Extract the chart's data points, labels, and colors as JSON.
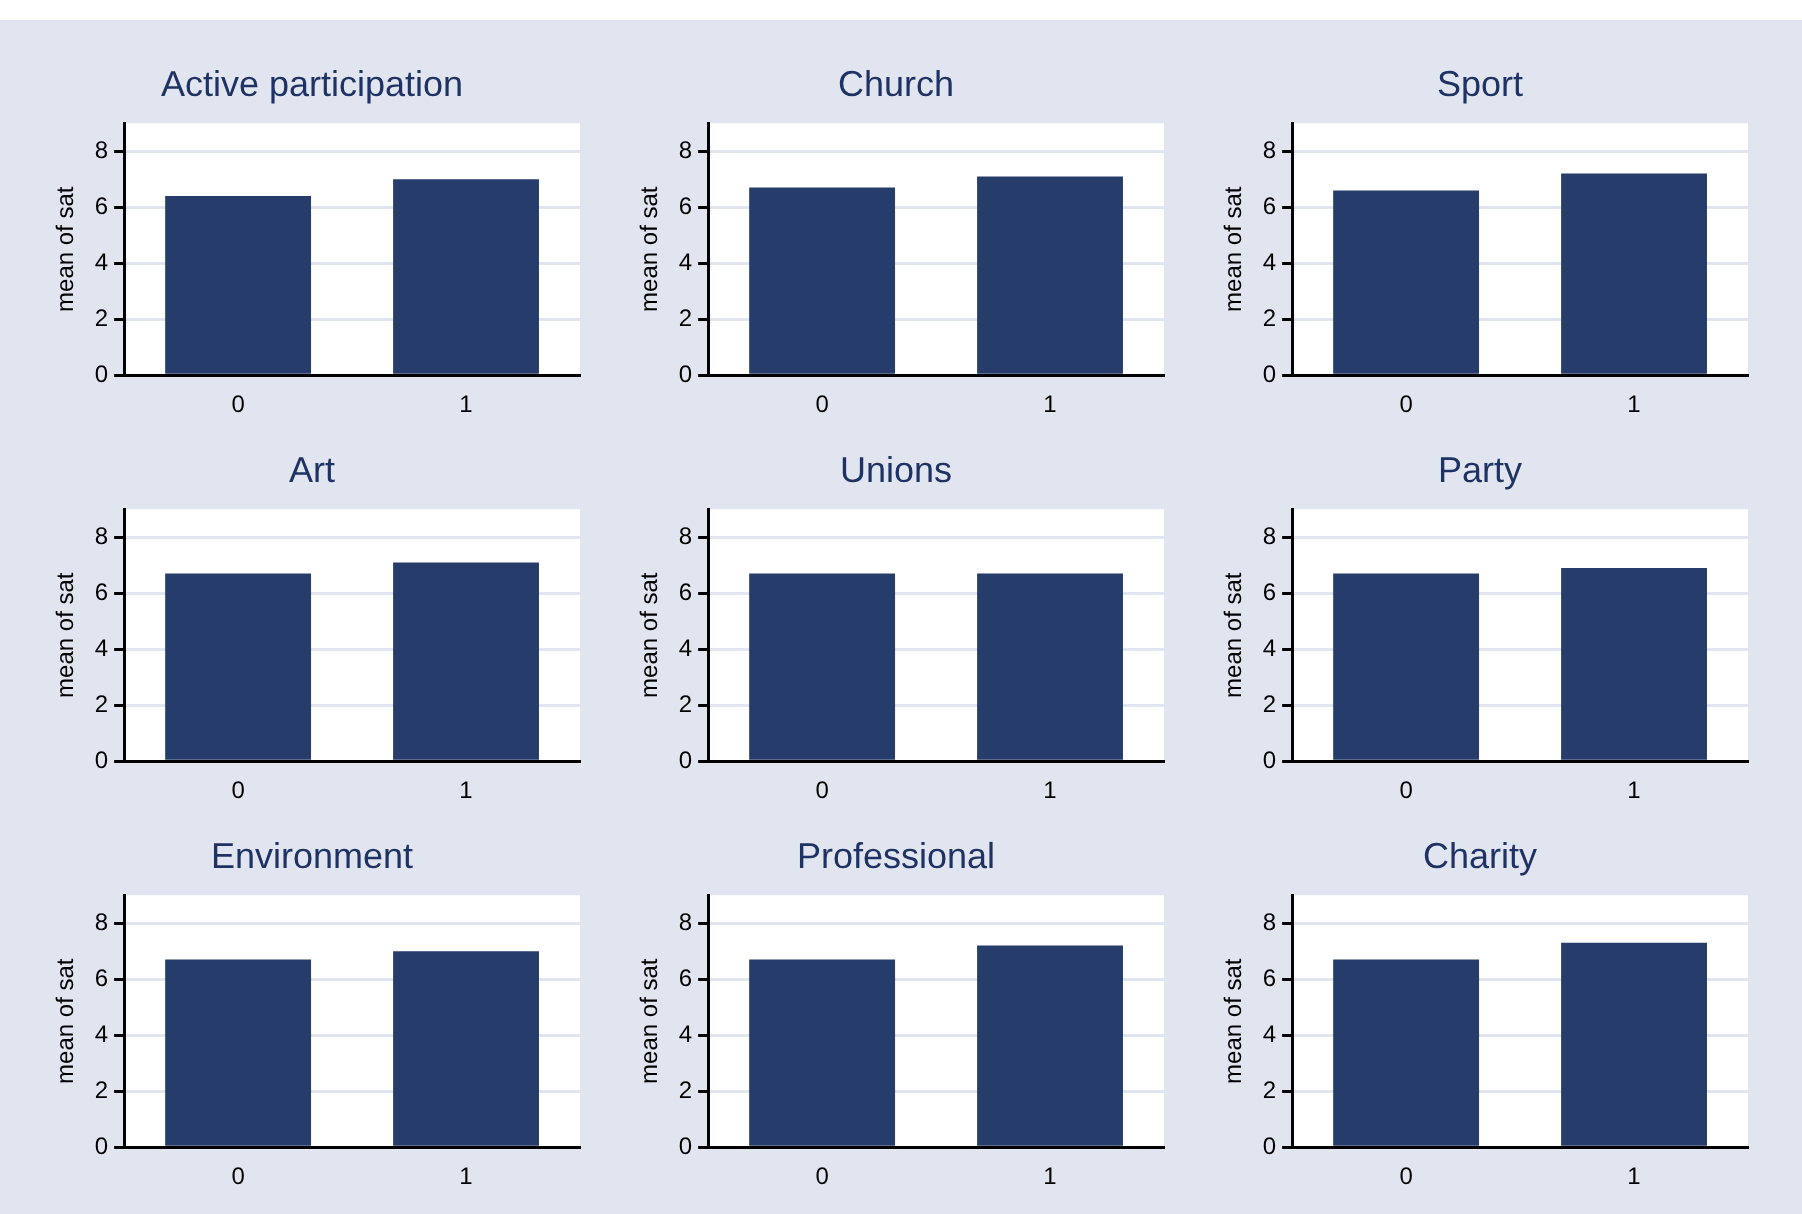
{
  "chart_data": [
    {
      "type": "bar",
      "title": "Active participation",
      "ylabel": "mean of sat",
      "categories": [
        "0",
        "1"
      ],
      "values": [
        6.4,
        7.0
      ],
      "color": "#263d6b",
      "ylim": [
        0,
        9
      ],
      "yticks": [
        0,
        2,
        4,
        6,
        8
      ],
      "grid": "y"
    },
    {
      "type": "bar",
      "title": "Church",
      "ylabel": "mean of sat",
      "categories": [
        "0",
        "1"
      ],
      "values": [
        6.7,
        7.1
      ],
      "color": "#263d6b",
      "ylim": [
        0,
        9
      ],
      "yticks": [
        0,
        2,
        4,
        6,
        8
      ],
      "grid": "y"
    },
    {
      "type": "bar",
      "title": "Sport",
      "ylabel": "mean of sat",
      "categories": [
        "0",
        "1"
      ],
      "values": [
        6.6,
        7.2
      ],
      "color": "#263d6b",
      "ylim": [
        0,
        9
      ],
      "yticks": [
        0,
        2,
        4,
        6,
        8
      ],
      "grid": "y"
    },
    {
      "type": "bar",
      "title": "Art",
      "ylabel": "mean of sat",
      "categories": [
        "0",
        "1"
      ],
      "values": [
        6.7,
        7.1
      ],
      "color": "#263d6b",
      "ylim": [
        0,
        9
      ],
      "yticks": [
        0,
        2,
        4,
        6,
        8
      ],
      "grid": "y"
    },
    {
      "type": "bar",
      "title": "Unions",
      "ylabel": "mean of sat",
      "categories": [
        "0",
        "1"
      ],
      "values": [
        6.7,
        6.7
      ],
      "color": "#263d6b",
      "ylim": [
        0,
        9
      ],
      "yticks": [
        0,
        2,
        4,
        6,
        8
      ],
      "grid": "y"
    },
    {
      "type": "bar",
      "title": "Party",
      "ylabel": "mean of sat",
      "categories": [
        "0",
        "1"
      ],
      "values": [
        6.7,
        6.9
      ],
      "color": "#263d6b",
      "ylim": [
        0,
        9
      ],
      "yticks": [
        0,
        2,
        4,
        6,
        8
      ],
      "grid": "y"
    },
    {
      "type": "bar",
      "title": "Environment",
      "ylabel": "mean of sat",
      "categories": [
        "0",
        "1"
      ],
      "values": [
        6.7,
        7.0
      ],
      "color": "#263d6b",
      "ylim": [
        0,
        9
      ],
      "yticks": [
        0,
        2,
        4,
        6,
        8
      ],
      "grid": "y"
    },
    {
      "type": "bar",
      "title": "Professional",
      "ylabel": "mean of sat",
      "categories": [
        "0",
        "1"
      ],
      "values": [
        6.7,
        7.2
      ],
      "color": "#263d6b",
      "ylim": [
        0,
        9
      ],
      "yticks": [
        0,
        2,
        4,
        6,
        8
      ],
      "grid": "y"
    },
    {
      "type": "bar",
      "title": "Charity",
      "ylabel": "mean of sat",
      "categories": [
        "0",
        "1"
      ],
      "values": [
        6.7,
        7.3
      ],
      "color": "#263d6b",
      "ylim": [
        0,
        9
      ],
      "yticks": [
        0,
        2,
        4,
        6,
        8
      ],
      "grid": "y"
    }
  ]
}
